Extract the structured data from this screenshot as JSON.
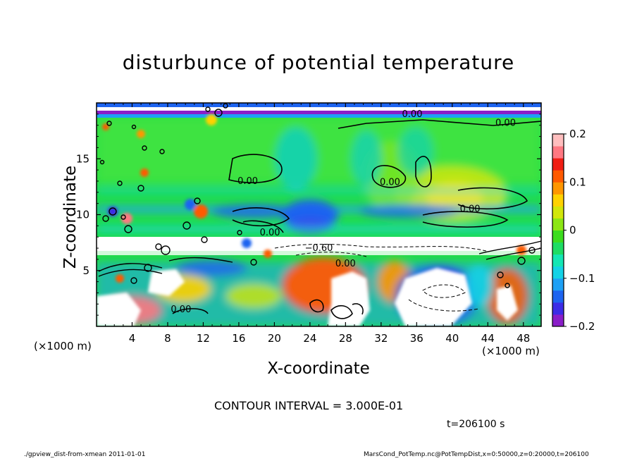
{
  "chart_data": {
    "type": "heatmap",
    "title": "disturbunce of potential temperature",
    "xlabel": "X-coordinate",
    "ylabel": "Z-coordinate",
    "x_unit_left": "(×1000 m)",
    "x_unit_right": "(×1000 m)",
    "xlim": [
      0,
      50
    ],
    "ylim": [
      0,
      20
    ],
    "x_ticks": [
      4,
      8,
      12,
      16,
      20,
      24,
      28,
      32,
      36,
      40,
      44,
      48
    ],
    "x_tick_labels": [
      "4",
      "8",
      "12",
      "16",
      "20",
      "24",
      "28",
      "32",
      "36",
      "40",
      "44",
      "48"
    ],
    "y_ticks": [
      5,
      10,
      15
    ],
    "y_tick_labels": [
      "5",
      "10",
      "15"
    ],
    "colorbar": {
      "range": [
        -0.2,
        0.2
      ],
      "ticks": [
        -0.2,
        -0.1,
        0,
        0.1,
        0.2
      ],
      "tick_labels": [
        "−0.2",
        "−0.1",
        "0",
        "0.1",
        "0.2"
      ],
      "colors": [
        "#8a1ec8",
        "#3c2ce6",
        "#1e64f0",
        "#1ea0f5",
        "#14d2e6",
        "#14e6b4",
        "#1edc64",
        "#3cdc1e",
        "#8ce614",
        "#d2e60a",
        "#ffd200",
        "#ff9600",
        "#ff5a00",
        "#f01e14",
        "#ff7882",
        "#ffbebe"
      ]
    },
    "contour_labels": [
      {
        "text": "0.00",
        "x": 35.5,
        "z": 19.0
      },
      {
        "text": "0.00",
        "x": 46.0,
        "z": 18.2
      },
      {
        "text": "0.00",
        "x": 17.0,
        "z": 13.0
      },
      {
        "text": "0.00",
        "x": 33.0,
        "z": 12.9
      },
      {
        "text": "0.00",
        "x": 42.0,
        "z": 10.5
      },
      {
        "text": "0.00",
        "x": 19.5,
        "z": 8.4
      },
      {
        "text": "0.00",
        "x": 9.5,
        "z": 1.5
      },
      {
        "text": "0.00",
        "x": 28.0,
        "z": 5.6
      },
      {
        "text": "−0.60",
        "x": 25.0,
        "z": 7.0
      }
    ]
  },
  "contour_interval": "CONTOUR INTERVAL = 3.000E-01",
  "time_label": "t=206100 s",
  "footer_left": "./gpview_dist-from-xmean  2011-01-01",
  "footer_right": "MarsCond_PotTemp.nc@PotTempDist,x=0:50000,z=0:20000,t=206100"
}
